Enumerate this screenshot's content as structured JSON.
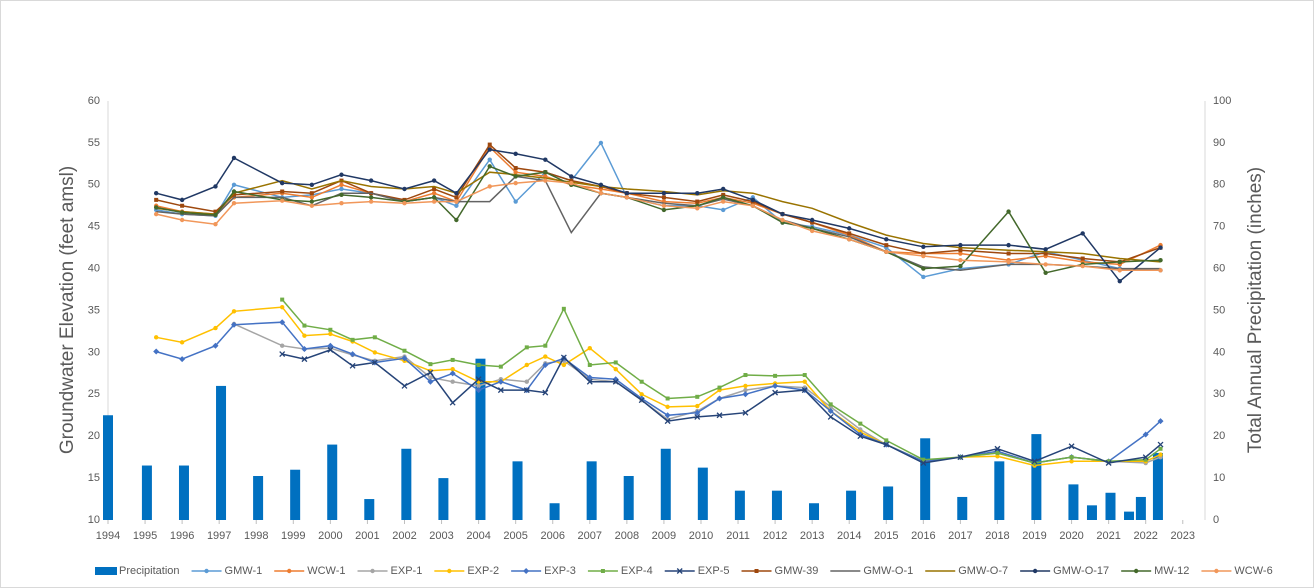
{
  "chart_data": {
    "type": "combo",
    "y_label": "Groundwater Elevation (feet amsl)",
    "y2_label": "Total Annual Precipitation (inches)",
    "xlim": [
      1994,
      2023.6
    ],
    "xticks": [
      1994,
      1995,
      1996,
      1997,
      1998,
      1999,
      2000,
      2001,
      2002,
      2003,
      2004,
      2005,
      2006,
      2007,
      2008,
      2009,
      2010,
      2011,
      2012,
      2013,
      2014,
      2015,
      2016,
      2017,
      2018,
      2019,
      2020,
      2021,
      2022,
      2023
    ],
    "ylim": [
      10,
      60
    ],
    "yticks": [
      10,
      15,
      20,
      25,
      30,
      35,
      40,
      45,
      50,
      55,
      60
    ],
    "y2lim": [
      0,
      100
    ],
    "y2ticks": [
      0,
      10,
      20,
      30,
      40,
      50,
      60,
      70,
      80,
      90,
      100
    ],
    "grid": false,
    "legend": "bottom",
    "series": [
      {
        "name": "Precipitation",
        "type": "bar",
        "axis": "y2",
        "color": "#0070c0",
        "x": [
          1994,
          1995.05,
          1996.05,
          1997.05,
          1998.05,
          1999.05,
          2000.05,
          2001.05,
          2002.05,
          2003.05,
          2004.05,
          2005.05,
          2006.05,
          2007.05,
          2008.05,
          2009.05,
          2010.05,
          2011.05,
          2012.05,
          2013.05,
          2014.05,
          2015.05,
          2016.05,
          2017.05,
          2018.05,
          2019.05,
          2020.05,
          2020.55,
          2021.05,
          2021.55,
          2021.87,
          2022.33
        ],
        "values": [
          25,
          13,
          13,
          32,
          10.5,
          12,
          18,
          5,
          17,
          10,
          38.5,
          14,
          4,
          14,
          10.5,
          17,
          12.5,
          7,
          7,
          4,
          7,
          8,
          19.5,
          5.5,
          14,
          20.5,
          8.5,
          3.5,
          6.5,
          2,
          5.5,
          16
        ]
      },
      {
        "name": "GMW-1",
        "type": "line",
        "marker": "circle",
        "color": "#5b9bd5",
        "x": [
          1995.3,
          1996,
          1996.9,
          1997.4,
          1998.7,
          1999.5,
          2000.3,
          2001.1,
          2002,
          2002.8,
          2003.4,
          2004.3,
          2005,
          2005.8,
          2006.5,
          2007.3,
          2008,
          2009,
          2009.9,
          2010.6,
          2011.4,
          2012.2,
          2013,
          2014,
          2015,
          2016,
          2017,
          2018.3,
          2019.3,
          2020.3,
          2021.3,
          2022.4
        ],
        "values": [
          47,
          46.5,
          46.3,
          50,
          48.5,
          48.8,
          49.5,
          49,
          48,
          48.5,
          47.5,
          53,
          48,
          51.5,
          50.5,
          55,
          48.5,
          47.5,
          47.5,
          47,
          48.5,
          45.5,
          45,
          44,
          42.5,
          39,
          40,
          40.5,
          42,
          41,
          40,
          39.8
        ]
      },
      {
        "name": "WCW-1",
        "type": "line",
        "marker": "circle",
        "color": "#ed7d31",
        "x": [
          1995.3,
          1996,
          1996.9,
          1997.4,
          1998.7,
          1999.5,
          2000.3,
          2001.1,
          2002,
          2002.8,
          2003.4,
          2004.3,
          2005,
          2005.8,
          2006.5,
          2007.3,
          2008,
          2009,
          2009.9,
          2010.6,
          2011.4,
          2012.2,
          2013,
          2014,
          2015,
          2016,
          2017,
          2018.3,
          2019.3,
          2020.3,
          2021.3,
          2022.4
        ],
        "values": [
          47.5,
          46.8,
          46.5,
          48.5,
          49,
          48.5,
          50,
          49,
          48,
          49,
          48,
          54.5,
          51.5,
          51,
          50,
          49.5,
          49,
          48,
          47.8,
          48.5,
          47.8,
          46.5,
          45.5,
          44,
          42,
          41.8,
          41.8,
          41,
          41.5,
          40.8,
          40.5,
          42.8
        ]
      },
      {
        "name": "EXP-1",
        "type": "line",
        "marker": "circle",
        "color": "#a5a5a5",
        "x": [
          1995.3,
          1996,
          1996.9,
          1997.4,
          1998.7,
          1999.3,
          2000,
          2000.6,
          2001.2,
          2002,
          2002.7,
          2003.3,
          2004,
          2004.6,
          2005.3,
          2005.8,
          2006.3,
          2007,
          2007.7,
          2008.4,
          2009.1,
          2009.9,
          2010.5,
          2011.2,
          2012,
          2012.8,
          2013.5,
          2014.3,
          2015,
          2016,
          2017,
          2018,
          2019,
          2020,
          2021,
          2022,
          2022.4
        ],
        "values": [
          null,
          null,
          null,
          33.4,
          30.8,
          30.4,
          30.5,
          29.7,
          29,
          29.5,
          27,
          26.5,
          26,
          26.8,
          26.5,
          28.7,
          29,
          26.8,
          26.5,
          24.3,
          22,
          23,
          24.5,
          25.5,
          26,
          25.8,
          23.5,
          20.8,
          19,
          17,
          17.5,
          18,
          16.8,
          17.5,
          17,
          16.8,
          17.5
        ]
      },
      {
        "name": "EXP-2",
        "type": "line",
        "marker": "circle",
        "color": "#ffc000",
        "x": [
          1995.3,
          1996,
          1996.9,
          1997.4,
          1998.7,
          1999.3,
          2000,
          2000.6,
          2001.2,
          2002,
          2002.7,
          2003.3,
          2004,
          2004.6,
          2005.3,
          2005.8,
          2006.3,
          2007,
          2007.7,
          2008.4,
          2009.1,
          2009.9,
          2010.5,
          2011.2,
          2012,
          2012.8,
          2013.5,
          2014.3,
          2015,
          2016,
          2017,
          2018,
          2019,
          2020,
          2021,
          2022,
          2022.4
        ],
        "values": [
          31.8,
          31.2,
          32.9,
          34.9,
          35.4,
          32,
          32.2,
          31.3,
          30,
          29,
          27.8,
          28,
          26.5,
          26.5,
          28.5,
          29.5,
          28.5,
          30.5,
          28,
          25,
          23.5,
          23.6,
          25.5,
          26,
          26.3,
          26.5,
          23,
          20.5,
          19,
          17,
          17.5,
          17.6,
          16.5,
          17,
          17,
          17,
          17.8
        ]
      },
      {
        "name": "EXP-3",
        "type": "line",
        "marker": "diamond",
        "color": "#4472c4",
        "x": [
          1995.3,
          1996,
          1996.9,
          1997.4,
          1998.7,
          1999.3,
          2000,
          2000.6,
          2001.2,
          2002,
          2002.7,
          2003.3,
          2004,
          2004.6,
          2005.3,
          2005.8,
          2006.3,
          2007,
          2007.7,
          2008.4,
          2009.1,
          2009.9,
          2010.5,
          2011.2,
          2012,
          2012.8,
          2013.5,
          2014.3,
          2015,
          2016,
          2017,
          2018,
          2019,
          2020,
          2021,
          2022,
          2022.4
        ],
        "values": [
          30.1,
          29.2,
          30.8,
          33.3,
          33.6,
          30.4,
          30.8,
          29.8,
          28.8,
          29.3,
          26.5,
          27.5,
          25.5,
          26.5,
          25.5,
          28.5,
          29.3,
          27,
          26.8,
          24.5,
          22.5,
          22.8,
          24.5,
          25,
          26,
          25.5,
          23,
          20.2,
          19,
          17,
          17.5,
          18.2,
          16.8,
          17.5,
          17,
          20.2,
          21.8
        ]
      },
      {
        "name": "EXP-4",
        "type": "line",
        "marker": "square",
        "color": "#70ad47",
        "x": [
          1995.3,
          1996,
          1996.9,
          1997.4,
          1998.7,
          1999.3,
          2000,
          2000.6,
          2001.2,
          2002,
          2002.7,
          2003.3,
          2004,
          2004.6,
          2005.3,
          2005.8,
          2006.3,
          2007,
          2007.7,
          2008.4,
          2009.1,
          2009.9,
          2010.5,
          2011.2,
          2012,
          2012.8,
          2013.5,
          2014.3,
          2015,
          2016,
          2017,
          2018,
          2019,
          2020,
          2021,
          2022,
          2022.4
        ],
        "values": [
          null,
          null,
          null,
          null,
          36.3,
          33.2,
          32.7,
          31.5,
          31.8,
          30.2,
          28.6,
          29.1,
          28.5,
          28.3,
          30.6,
          30.8,
          35.2,
          28.5,
          28.8,
          26.5,
          24.5,
          24.7,
          25.8,
          27.3,
          27.2,
          27.3,
          23.8,
          21.5,
          19.5,
          17.2,
          17.5,
          18,
          16.8,
          17.5,
          17,
          17.2,
          18.5
        ]
      },
      {
        "name": "EXP-5",
        "type": "line",
        "marker": "x",
        "color": "#264478",
        "x": [
          1995.3,
          1996,
          1996.9,
          1997.4,
          1998.7,
          1999.3,
          2000,
          2000.6,
          2001.2,
          2002,
          2002.7,
          2003.3,
          2004,
          2004.6,
          2005.3,
          2005.8,
          2006.3,
          2007,
          2007.7,
          2008.4,
          2009.1,
          2009.9,
          2010.5,
          2011.2,
          2012,
          2012.8,
          2013.5,
          2014.3,
          2015,
          2016,
          2017,
          2018,
          2019,
          2020,
          2021,
          2022,
          2022.4
        ],
        "values": [
          null,
          null,
          null,
          null,
          29.8,
          29.2,
          30.3,
          28.4,
          28.8,
          26,
          27.6,
          24,
          26.8,
          25.5,
          25.5,
          25.2,
          29.4,
          26.5,
          26.5,
          24.3,
          21.8,
          22.3,
          22.5,
          22.8,
          25.2,
          25.5,
          22.3,
          20,
          19,
          16.8,
          17.5,
          18.5,
          17,
          18.8,
          16.8,
          17.5,
          19
        ]
      },
      {
        "name": "GMW-39",
        "type": "line",
        "marker": "square",
        "color": "#9e480e",
        "x": [
          1995.3,
          1996,
          1996.9,
          1997.4,
          1998.7,
          1999.5,
          2000.3,
          2001.1,
          2002,
          2002.8,
          2003.4,
          2004.3,
          2005,
          2005.8,
          2006.5,
          2007.3,
          2008,
          2009,
          2009.9,
          2010.6,
          2011.4,
          2012.2,
          2013,
          2014,
          2015,
          2016,
          2017,
          2018.3,
          2019.3,
          2020.3,
          2021.3,
          2022.4
        ],
        "values": [
          48.2,
          47.5,
          46.8,
          48.8,
          49.2,
          49,
          50.5,
          49,
          48.2,
          49.5,
          48.5,
          54.8,
          52,
          51.5,
          50.5,
          49.8,
          49,
          48.5,
          48,
          48.8,
          48,
          46.5,
          45.5,
          44.2,
          42.8,
          41.8,
          42.2,
          41.8,
          41.8,
          41.2,
          40.8,
          42.5
        ]
      },
      {
        "name": "GMW-O-1",
        "type": "line",
        "marker": "none",
        "color": "#636363",
        "x": [
          1995.3,
          1996,
          1996.9,
          1997.4,
          1998.7,
          1999.5,
          2000.3,
          2001.1,
          2002,
          2002.8,
          2003.4,
          2004.3,
          2005,
          2005.8,
          2006.5,
          2007.3,
          2008,
          2009,
          2009.9,
          2010.6,
          2011.4,
          2012.2,
          2013,
          2014,
          2015,
          2016,
          2017,
          2018.3,
          2019.3,
          2020.3,
          2021.3,
          2022.4
        ],
        "values": [
          46.8,
          46.5,
          46.3,
          48.5,
          48.5,
          47.5,
          49,
          49,
          48,
          48.5,
          48,
          48,
          51,
          50.5,
          44.3,
          49,
          48.5,
          47.8,
          47.5,
          48.3,
          47.5,
          45.8,
          44.8,
          43.8,
          42,
          40.2,
          39.8,
          40.5,
          40.5,
          40.3,
          40,
          40
        ]
      },
      {
        "name": "GMW-O-7",
        "type": "line",
        "marker": "none",
        "color": "#997300",
        "x": [
          1995.3,
          1996,
          1996.9,
          1997.4,
          1998.7,
          1999.5,
          2000.3,
          2001.1,
          2002,
          2002.8,
          2003.4,
          2004.3,
          2005,
          2005.8,
          2006.5,
          2007.3,
          2008,
          2009,
          2009.9,
          2010.6,
          2011.4,
          2012.2,
          2013,
          2014,
          2015,
          2016,
          2017,
          2018.3,
          2019.3,
          2020.3,
          2021.3,
          2022.4
        ],
        "values": [
          47.2,
          46.8,
          46.5,
          49,
          50.5,
          49.5,
          50.5,
          49.8,
          49.5,
          49.8,
          49,
          51.5,
          51.2,
          50.8,
          50.3,
          49.8,
          49.5,
          49.2,
          48.8,
          49.3,
          49,
          48,
          47.2,
          45.5,
          44,
          43,
          42.5,
          42.2,
          42,
          41.8,
          41.2,
          40.8
        ]
      },
      {
        "name": "GMW-O-17",
        "type": "line",
        "marker": "circle",
        "color": "#203864",
        "x": [
          1995.3,
          1996,
          1996.9,
          1997.4,
          1998.7,
          1999.5,
          2000.3,
          2001.1,
          2002,
          2002.8,
          2003.4,
          2004.3,
          2005,
          2005.8,
          2006.5,
          2007.3,
          2008,
          2009,
          2009.9,
          2010.6,
          2011.4,
          2012.2,
          2013,
          2014,
          2015,
          2016,
          2017,
          2018.3,
          2019.3,
          2020.3,
          2021.3,
          2022.4
        ],
        "values": [
          49,
          48.2,
          49.8,
          53.2,
          50.2,
          50,
          51.2,
          50.5,
          49.5,
          50.5,
          49,
          54.2,
          53.7,
          53,
          51,
          50,
          49,
          49,
          49,
          49.5,
          48.2,
          46.5,
          45.8,
          44.8,
          43.5,
          42.6,
          42.8,
          42.8,
          42.3,
          44.2,
          38.5,
          42.5
        ]
      },
      {
        "name": "MW-12",
        "type": "line",
        "marker": "circle",
        "color": "#43682b",
        "x": [
          1995.3,
          1996,
          1996.9,
          1997.4,
          1998.7,
          1999.5,
          2000.3,
          2001.1,
          2002,
          2002.8,
          2003.4,
          2004.3,
          2005,
          2005.8,
          2006.5,
          2007.3,
          2008,
          2009,
          2009.9,
          2010.6,
          2011.4,
          2012.2,
          2013,
          2014,
          2015,
          2016,
          2017,
          2018.3,
          2019.3,
          2020.3,
          2021.3,
          2022.4
        ],
        "values": [
          47.3,
          46.7,
          46.4,
          49.2,
          48.2,
          48,
          48.8,
          48.5,
          48,
          48.5,
          45.8,
          52.2,
          51,
          51.5,
          50,
          49,
          48.5,
          47,
          47.5,
          48.5,
          47.5,
          45.5,
          44.8,
          43.5,
          42,
          40,
          40.3,
          46.8,
          39.5,
          40.5,
          40.8,
          41
        ]
      },
      {
        "name": "WCW-6",
        "type": "line",
        "marker": "circle",
        "color": "#f1975a",
        "x": [
          1995.3,
          1996,
          1996.9,
          1997.4,
          1998.7,
          1999.5,
          2000.3,
          2001.1,
          2002,
          2002.8,
          2003.4,
          2004.3,
          2005,
          2005.8,
          2006.5,
          2007.3,
          2008,
          2009,
          2009.9,
          2010.6,
          2011.4,
          2012.2,
          2013,
          2014,
          2015,
          2016,
          2017,
          2018.3,
          2019.3,
          2020.3,
          2021.3,
          2022.4
        ],
        "values": [
          46.5,
          45.8,
          45.3,
          47.8,
          48.1,
          47.5,
          47.8,
          48,
          47.8,
          48,
          48,
          49.8,
          50.2,
          50.5,
          50.2,
          49,
          48.5,
          47.5,
          47.2,
          48,
          47.5,
          45.8,
          44.5,
          43.5,
          42,
          41.5,
          41,
          40.8,
          40.5,
          40.3,
          39.8,
          39.8
        ]
      }
    ]
  }
}
